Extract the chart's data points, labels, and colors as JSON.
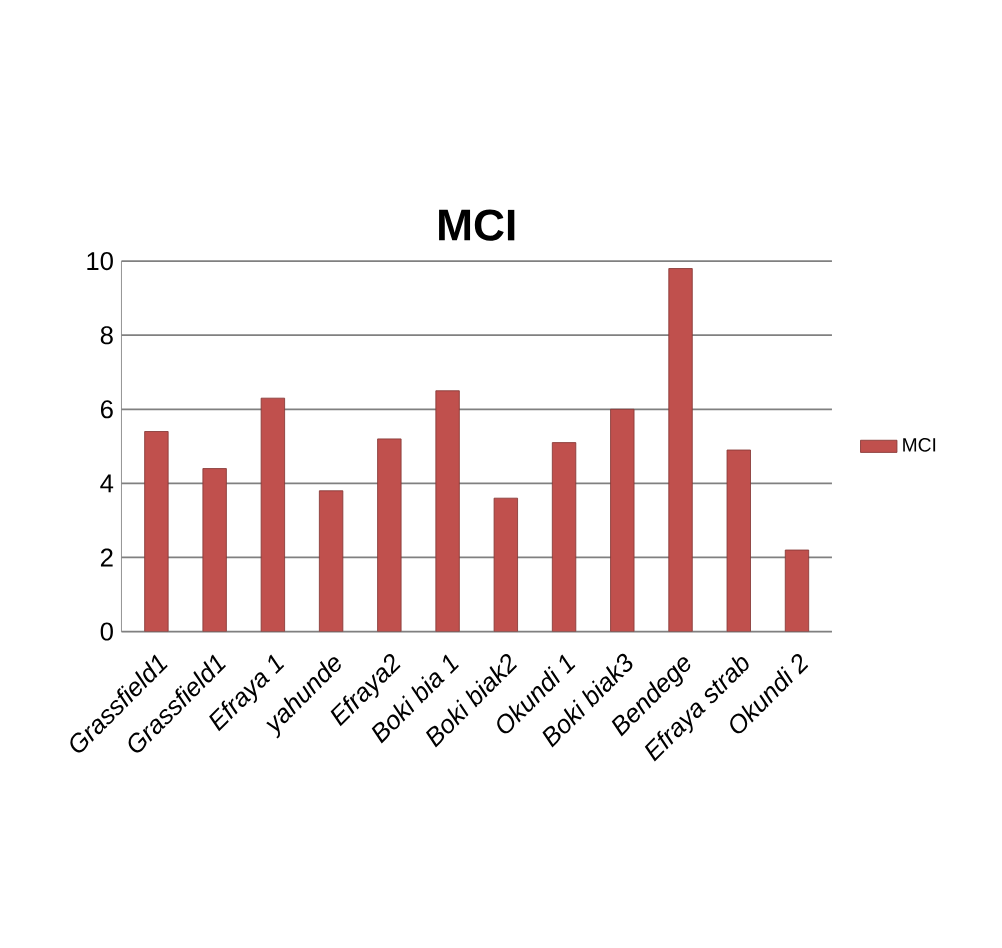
{
  "chart_data": {
    "type": "bar",
    "title": "MCI",
    "categories": [
      "Grassfield1",
      "Grassfield1",
      "Efraya 1",
      "yahunde",
      "Efraya2",
      "Boki bia 1",
      "Boki biak2",
      "Okundi 1",
      "Boki biak3",
      "Bendege",
      "Efraya strab",
      "Okundi 2"
    ],
    "series": [
      {
        "name": "MCI",
        "color": "#c0504d",
        "values": [
          5.4,
          4.4,
          6.3,
          3.8,
          5.2,
          6.5,
          3.6,
          5.1,
          6.0,
          9.8,
          4.9,
          2.2
        ]
      }
    ],
    "ylim": [
      0,
      10
    ],
    "yticks": [
      0,
      2,
      4,
      6,
      8,
      10
    ],
    "grid": "y",
    "legend": "right"
  }
}
